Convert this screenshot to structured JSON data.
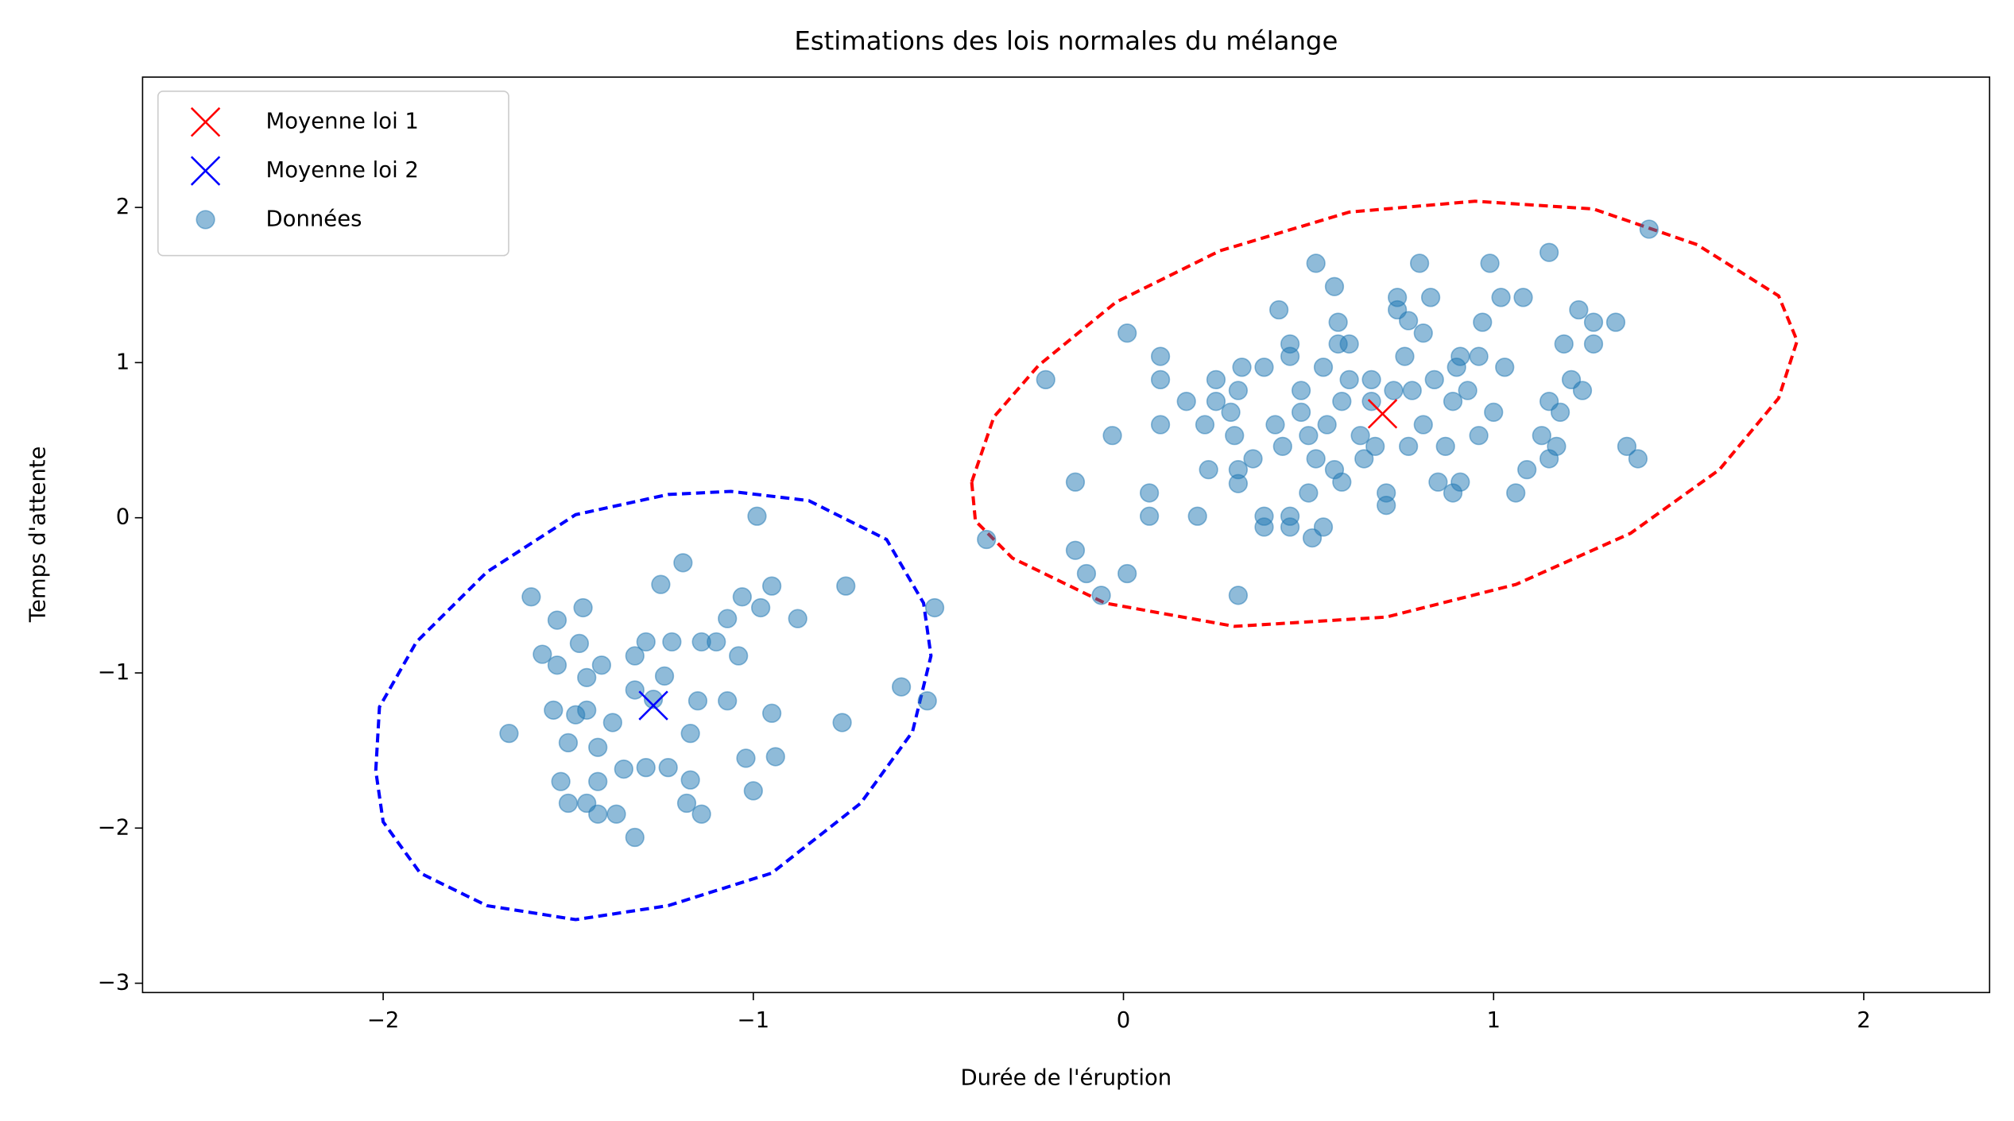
{
  "chart_data": {
    "type": "scatter",
    "title": "Estimations des lois normales du mélange",
    "x_label": "Durée de l'éruption",
    "y_label": "Temps d'attente",
    "xlim": [
      -2.65,
      2.34
    ],
    "ylim": [
      -3.06,
      2.84
    ],
    "xticks": [
      {
        "value": -2,
        "label": "−2"
      },
      {
        "value": -1,
        "label": "−1"
      },
      0,
      1,
      2
    ],
    "yticks": [
      {
        "value": -3,
        "label": "−3"
      },
      {
        "value": -2,
        "label": "−2"
      },
      {
        "value": -1,
        "label": "−1"
      },
      0,
      1,
      2
    ],
    "grid": false,
    "legend": "upper left",
    "contours": [
      {
        "color": "#ff0000",
        "style": "dashed",
        "x": [
          -0.41,
          -0.35,
          -0.23,
          -0.02,
          0.26,
          0.61,
          0.95,
          1.27,
          1.55,
          1.77,
          1.82,
          1.77,
          1.61,
          1.37,
          1.06,
          0.71,
          0.3,
          -0.05,
          -0.3,
          -0.4
        ],
        "values": [
          0.23,
          0.65,
          0.98,
          1.39,
          1.72,
          1.97,
          2.04,
          1.99,
          1.76,
          1.43,
          1.14,
          0.77,
          0.31,
          -0.1,
          -0.43,
          -0.64,
          -0.7,
          -0.55,
          -0.26,
          -0.02
        ]
      },
      {
        "color": "#0000ff",
        "style": "dashed",
        "x": [
          -2.02,
          -2.01,
          -1.91,
          -1.72,
          -1.48,
          -1.23,
          -1.06,
          -0.85,
          -0.64,
          -0.54,
          -0.52,
          -0.57,
          -0.71,
          -0.95,
          -1.23,
          -1.48,
          -1.72,
          -1.9,
          -2.0
        ],
        "values": [
          -1.63,
          -1.22,
          -0.8,
          -0.35,
          0.02,
          0.15,
          0.17,
          0.11,
          -0.14,
          -0.55,
          -0.89,
          -1.38,
          -1.84,
          -2.29,
          -2.5,
          -2.59,
          -2.5,
          -2.29,
          -1.96
        ]
      }
    ],
    "series": [
      {
        "name": "Moyenne loi 1",
        "color": "#ff0000",
        "marker": "x",
        "x": [
          0.7
        ],
        "values": [
          0.67
        ]
      },
      {
        "name": "Moyenne loi 2",
        "color": "#0000ff",
        "marker": "x",
        "x": [
          -1.27
        ],
        "values": [
          -1.21
        ]
      },
      {
        "name": "Données",
        "color": "#1f77b4",
        "marker": "o",
        "alpha": 0.5,
        "x": [
          -1.6,
          -1.53,
          -1.46,
          -1.57,
          -1.53,
          -1.47,
          -1.41,
          -1.45,
          -1.54,
          -1.48,
          -1.45,
          -1.66,
          -1.5,
          -1.42,
          -1.52,
          -1.5,
          -1.45,
          -1.42,
          -1.42,
          -1.37,
          -1.32,
          -1.35,
          -1.32,
          -1.32,
          -1.29,
          -1.25,
          -1.19,
          -1.24,
          -1.22,
          -1.29,
          -1.23,
          -1.17,
          -1.15,
          -1.17,
          -1.18,
          -1.14,
          -1.14,
          -1.1,
          -1.07,
          -1.03,
          -0.99,
          -0.95,
          -0.98,
          -1.04,
          -1.07,
          -1.02,
          -1.0,
          -0.95,
          -0.94,
          -0.88,
          -0.75,
          -0.76,
          -0.6,
          -0.53,
          -0.51,
          -1.27,
          -1.38,
          -0.37,
          -0.21,
          -0.13,
          -0.13,
          -0.1,
          -0.06,
          -0.03,
          0.01,
          0.01,
          0.07,
          0.07,
          0.1,
          0.1,
          0.1,
          0.17,
          0.2,
          0.22,
          0.23,
          0.25,
          0.25,
          0.29,
          0.3,
          0.31,
          0.31,
          0.31,
          0.31,
          0.32,
          0.35,
          0.38,
          0.38,
          0.38,
          0.41,
          0.42,
          0.43,
          0.45,
          0.45,
          0.45,
          0.45,
          0.48,
          0.48,
          0.5,
          0.5,
          0.51,
          0.52,
          0.52,
          0.54,
          0.54,
          0.55,
          0.57,
          0.57,
          0.58,
          0.58,
          0.59,
          0.59,
          0.61,
          0.61,
          0.64,
          0.65,
          0.67,
          0.67,
          0.68,
          0.71,
          0.71,
          0.73,
          0.74,
          0.74,
          0.76,
          0.77,
          0.77,
          0.78,
          0.8,
          0.81,
          0.81,
          0.83,
          0.84,
          0.85,
          0.87,
          0.89,
          0.89,
          0.9,
          0.91,
          0.91,
          0.93,
          0.96,
          0.96,
          0.97,
          0.99,
          1.0,
          1.02,
          1.03,
          1.06,
          1.08,
          1.09,
          1.13,
          1.15,
          1.15,
          1.17,
          1.18,
          1.19,
          1.23,
          1.27,
          1.27,
          1.33,
          1.36,
          1.39,
          1.42,
          1.21,
          1.24,
          1.15
        ],
        "values": [
          -0.51,
          -0.66,
          -0.58,
          -0.88,
          -0.95,
          -0.81,
          -0.95,
          -1.03,
          -1.24,
          -1.27,
          -1.24,
          -1.39,
          -1.45,
          -1.48,
          -1.7,
          -1.84,
          -1.84,
          -1.7,
          -1.91,
          -1.91,
          -2.06,
          -1.62,
          -1.11,
          -0.89,
          -0.8,
          -0.43,
          -0.29,
          -1.02,
          -0.8,
          -1.61,
          -1.61,
          -1.39,
          -1.18,
          -1.69,
          -1.84,
          -1.91,
          -0.8,
          -0.8,
          -0.65,
          -0.51,
          0.01,
          -0.44,
          -0.58,
          -0.89,
          -1.18,
          -1.55,
          -1.76,
          -1.26,
          -1.54,
          -0.65,
          -0.44,
          -1.32,
          -1.09,
          -1.18,
          -0.58,
          -1.17,
          -1.32,
          -0.14,
          0.89,
          0.23,
          -0.21,
          -0.36,
          -0.5,
          0.53,
          1.19,
          -0.36,
          0.16,
          0.01,
          0.89,
          1.04,
          0.6,
          0.75,
          0.01,
          0.6,
          0.31,
          0.89,
          0.75,
          0.68,
          0.53,
          0.82,
          0.31,
          0.22,
          -0.5,
          0.97,
          0.38,
          0.97,
          0.01,
          -0.06,
          0.6,
          1.34,
          0.46,
          1.12,
          1.04,
          0.01,
          -0.06,
          0.82,
          0.68,
          0.53,
          0.16,
          -0.13,
          1.64,
          0.38,
          0.97,
          -0.06,
          0.6,
          1.49,
          0.31,
          1.26,
          1.12,
          0.75,
          0.23,
          1.12,
          0.89,
          0.53,
          0.38,
          0.89,
          0.75,
          0.46,
          0.16,
          0.08,
          0.82,
          1.34,
          1.42,
          1.04,
          0.46,
          1.27,
          0.82,
          1.64,
          1.19,
          0.6,
          1.42,
          0.89,
          0.23,
          0.46,
          0.75,
          0.16,
          0.97,
          0.23,
          1.04,
          0.82,
          0.53,
          1.04,
          1.26,
          1.64,
          0.68,
          1.42,
          0.97,
          0.16,
          1.42,
          0.31,
          0.53,
          1.71,
          0.75,
          0.46,
          0.68,
          1.12,
          1.34,
          1.26,
          1.12,
          1.26,
          0.46,
          0.38,
          1.86,
          0.89,
          0.82,
          0.38
        ]
      }
    ]
  }
}
